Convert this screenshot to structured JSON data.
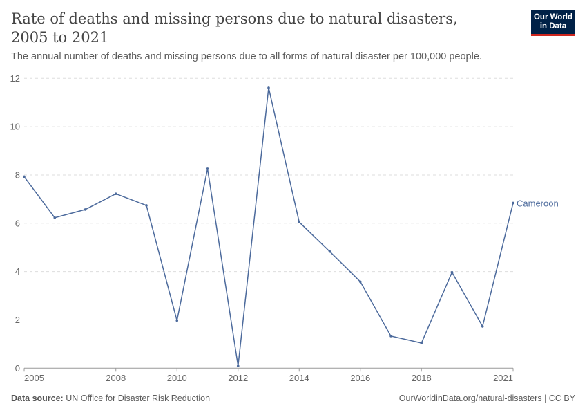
{
  "header": {
    "title": "Rate of deaths and missing persons due to natural disasters, 2005 to 2021",
    "subtitle": "The annual number of deaths and missing persons due to all forms of natural disaster per 100,000 people.",
    "logo_line1": "Our World",
    "logo_line2": "in Data"
  },
  "footer": {
    "source_label": "Data source:",
    "source": "UN Office for Disaster Risk Reduction",
    "url": "OurWorldinData.org/natural-disasters | CC BY"
  },
  "colors": {
    "series": "#4c6a9c",
    "grid": "#dddddd",
    "axis": "#999999",
    "logo_bg": "#002147",
    "logo_accent": "#ce261e"
  },
  "chart_data": {
    "type": "line",
    "title": "Rate of deaths and missing persons due to natural disasters, 2005 to 2021",
    "xlim": [
      2005,
      2021
    ],
    "ylim": [
      0,
      12
    ],
    "yticks": [
      0,
      2,
      4,
      6,
      8,
      10,
      12
    ],
    "xticks": [
      2005,
      2008,
      2010,
      2012,
      2014,
      2016,
      2018,
      2021
    ],
    "grid": "horizontal dashed",
    "series": [
      {
        "name": "Cameroon",
        "x": [
          2005,
          2006,
          2007,
          2008,
          2009,
          2010,
          2011,
          2012,
          2013,
          2014,
          2015,
          2016,
          2017,
          2018,
          2019,
          2020,
          2021
        ],
        "y": [
          7.93,
          6.23,
          6.57,
          7.22,
          6.74,
          1.97,
          8.26,
          0.09,
          11.61,
          6.05,
          4.83,
          3.58,
          1.33,
          1.04,
          3.97,
          1.73,
          6.84
        ]
      }
    ]
  }
}
